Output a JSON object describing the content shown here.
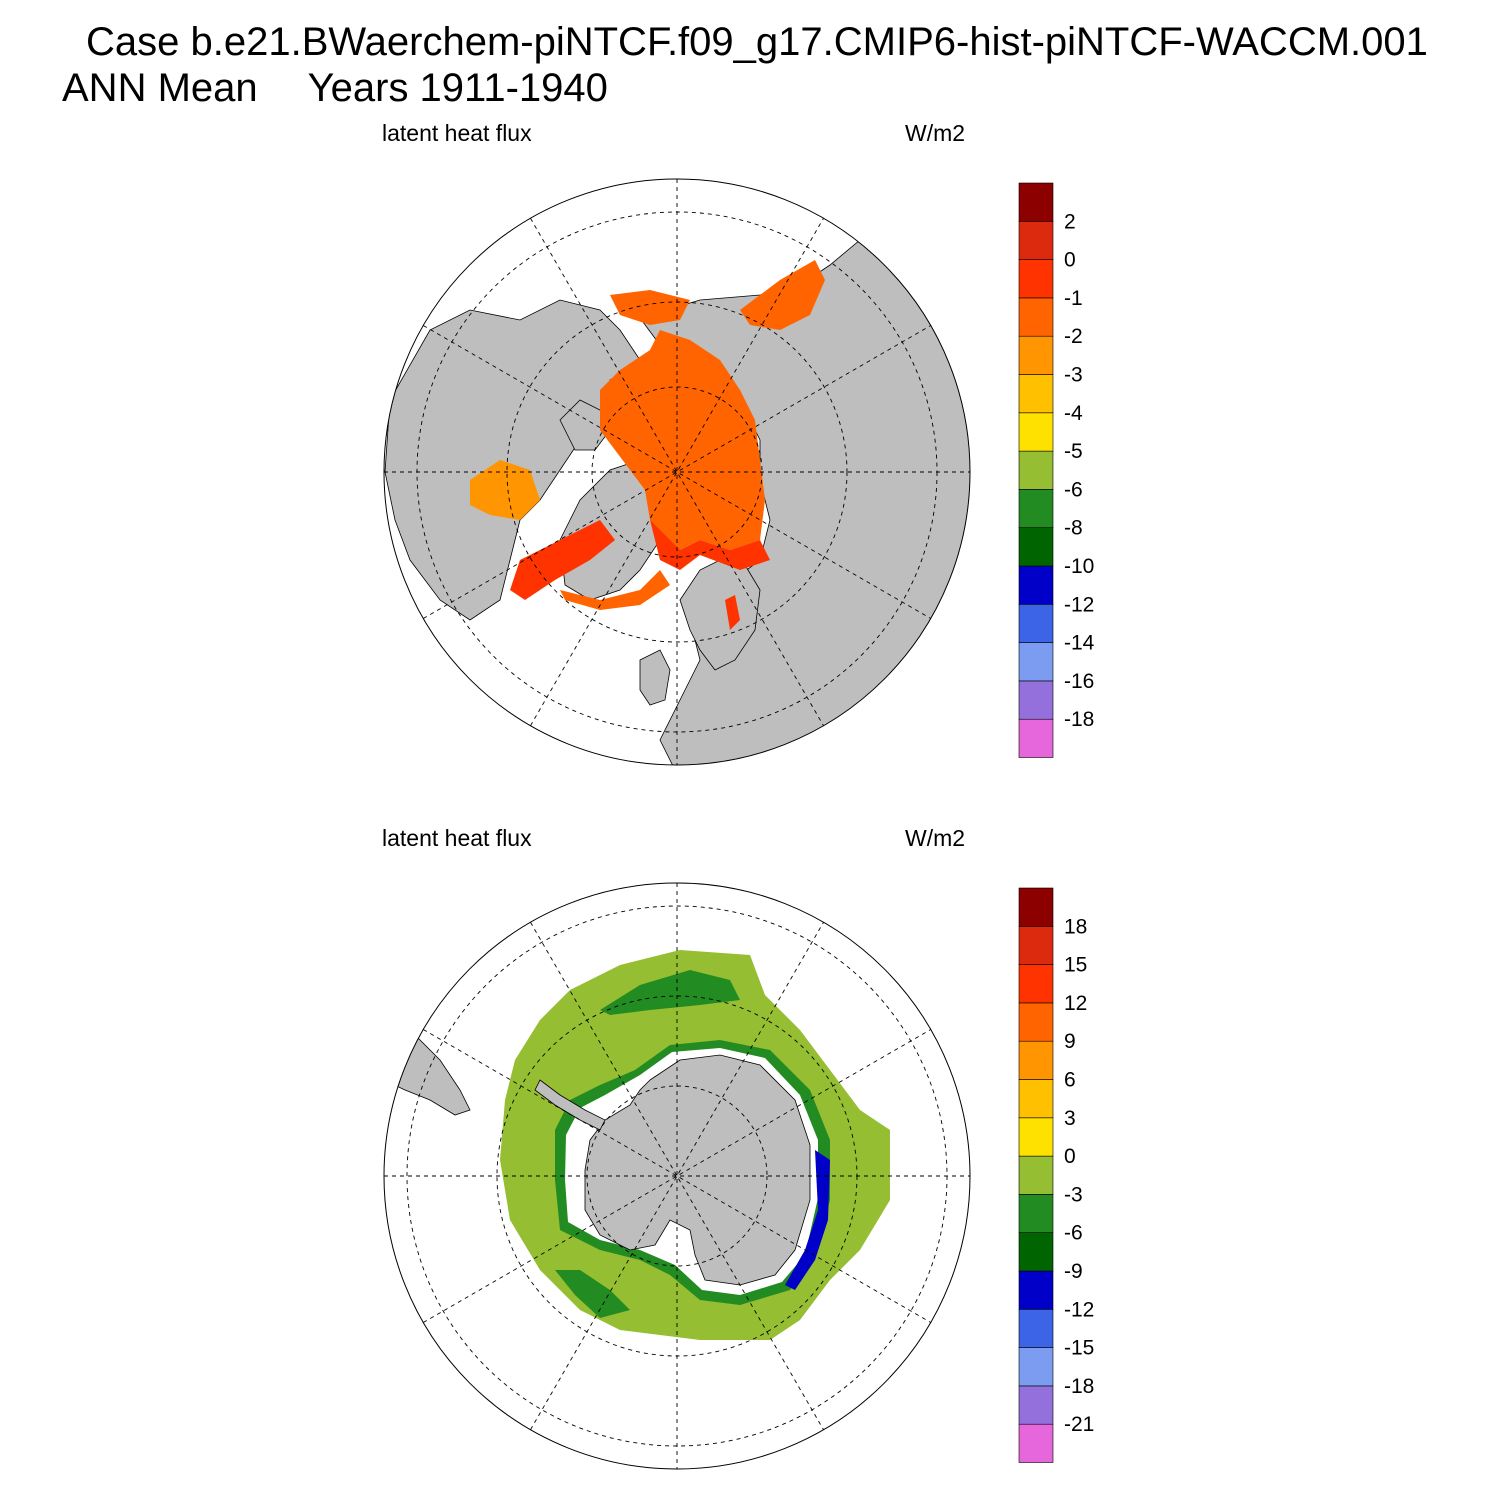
{
  "header": {
    "line1": "Case b.e21.BWaerchem-piNTCF.f09_g17.CMIP6-hist-piNTCF-WACCM.001",
    "line2_left": "ANN Mean",
    "line2_right": "Years 1911-1940"
  },
  "colors": {
    "land": "#bebebe",
    "ocean_missing": "#ffffff",
    "grid": "#000000",
    "palette": [
      "#e666dc",
      "#9370db",
      "#7b9cf1",
      "#3c64e6",
      "#0000c8",
      "#006400",
      "#228b22",
      "#96be32",
      "#ffe100",
      "#ffc000",
      "#ff9500",
      "#ff6400",
      "#ff3300",
      "#dc2a0f",
      "#8c0000"
    ]
  },
  "panels": [
    {
      "id": "north",
      "label_left": "latent heat flux",
      "label_right": "W/m2",
      "region": "Northern Hemisphere polar stereographic",
      "colorbar_levels": [
        "2",
        "0",
        "-1",
        "-2",
        "-3",
        "-4",
        "-5",
        "-6",
        "-8",
        "-10",
        "-12",
        "-14",
        "-16",
        "-18"
      ]
    },
    {
      "id": "south",
      "label_left": "latent heat flux",
      "label_right": "W/m2",
      "region": "Southern Hemisphere polar stereographic",
      "colorbar_levels": [
        "18",
        "15",
        "12",
        "9",
        "6",
        "3",
        "0",
        "-3",
        "-6",
        "-9",
        "-12",
        "-15",
        "-18",
        "-21"
      ]
    }
  ]
}
